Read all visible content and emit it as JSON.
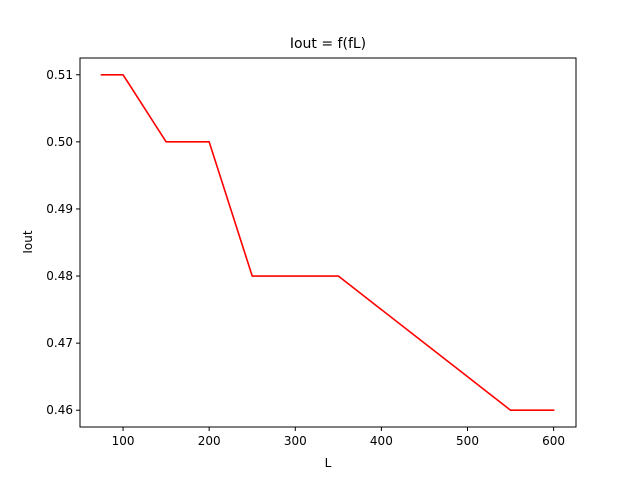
{
  "chart_data": {
    "type": "line",
    "title": "Iout = f(fL)",
    "xlabel": "L",
    "ylabel": "Iout",
    "xlim": [
      50,
      626
    ],
    "ylim": [
      0.4575,
      0.5125
    ],
    "xticks": [
      100,
      200,
      300,
      400,
      500,
      600
    ],
    "yticks": [
      0.46,
      0.47,
      0.48,
      0.49,
      0.5,
      0.51
    ],
    "xtick_labels": [
      "100",
      "200",
      "300",
      "400",
      "500",
      "600"
    ],
    "ytick_labels": [
      "0.46",
      "0.47",
      "0.48",
      "0.49",
      "0.50",
      "0.51"
    ],
    "grid": false,
    "series": [
      {
        "color": "#ff0000",
        "x": [
          75,
          100,
          150,
          200,
          250,
          300,
          350,
          400,
          450,
          500,
          550,
          600
        ],
        "y": [
          0.51,
          0.51,
          0.5,
          0.5,
          0.48,
          0.48,
          0.48,
          0.475,
          0.47,
          0.465,
          0.46,
          0.46
        ]
      }
    ]
  }
}
